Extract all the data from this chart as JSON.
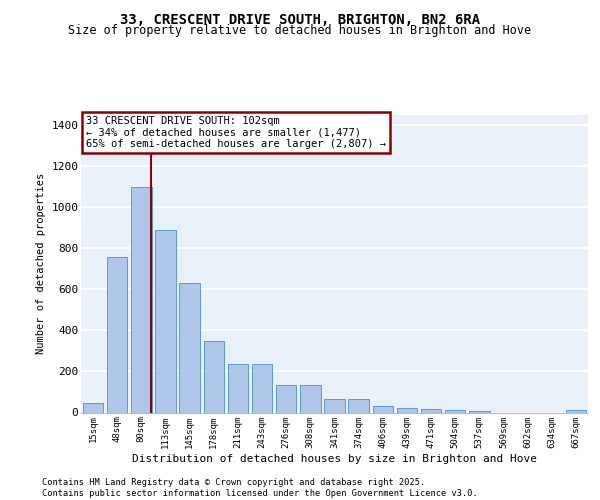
{
  "title_line1": "33, CRESCENT DRIVE SOUTH, BRIGHTON, BN2 6RA",
  "title_line2": "Size of property relative to detached houses in Brighton and Hove",
  "xlabel": "Distribution of detached houses by size in Brighton and Hove",
  "ylabel": "Number of detached properties",
  "categories": [
    "15sqm",
    "48sqm",
    "80sqm",
    "113sqm",
    "145sqm",
    "178sqm",
    "211sqm",
    "243sqm",
    "276sqm",
    "308sqm",
    "341sqm",
    "374sqm",
    "406sqm",
    "439sqm",
    "471sqm",
    "504sqm",
    "537sqm",
    "569sqm",
    "602sqm",
    "634sqm",
    "667sqm"
  ],
  "values": [
    48,
    760,
    1100,
    890,
    630,
    350,
    235,
    235,
    135,
    135,
    65,
    65,
    30,
    20,
    15,
    10,
    5,
    0,
    0,
    0,
    10
  ],
  "bar_color": "#aec6e8",
  "bar_edge_color": "#5b9bd5",
  "background_color": "#e8f0fa",
  "grid_color": "#ffffff",
  "vline_color": "#8b0000",
  "annotation_text": "33 CRESCENT DRIVE SOUTH: 102sqm\n← 34% of detached houses are smaller (1,477)\n65% of semi-detached houses are larger (2,807) →",
  "annotation_box_edgecolor": "#8b0000",
  "footer_text": "Contains HM Land Registry data © Crown copyright and database right 2025.\nContains public sector information licensed under the Open Government Licence v3.0.",
  "ylim": [
    0,
    1450
  ],
  "yticks": [
    0,
    200,
    400,
    600,
    800,
    1000,
    1200,
    1400
  ]
}
